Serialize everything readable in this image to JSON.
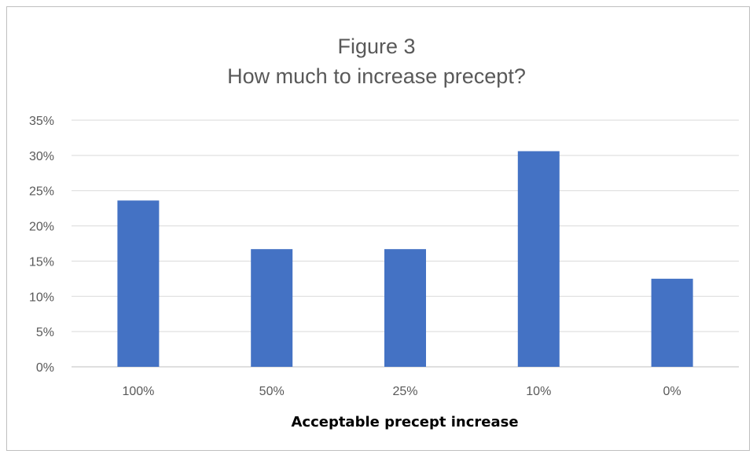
{
  "chart_data": {
    "type": "bar",
    "title": "Figure  3",
    "subtitle": "How much to increase precept?",
    "xlabel": "Acceptable  precept increase",
    "ylabel": "",
    "categories": [
      "100%",
      "50%",
      "25%",
      "10%",
      "0%"
    ],
    "values": [
      23.6,
      16.7,
      16.7,
      30.6,
      12.5
    ],
    "ylim": [
      0,
      35
    ],
    "yticks": [
      0,
      5,
      10,
      15,
      20,
      25,
      30,
      35
    ],
    "ytick_suffix": "%",
    "grid": true,
    "legend": "none",
    "bar_color": "#4472c4"
  }
}
